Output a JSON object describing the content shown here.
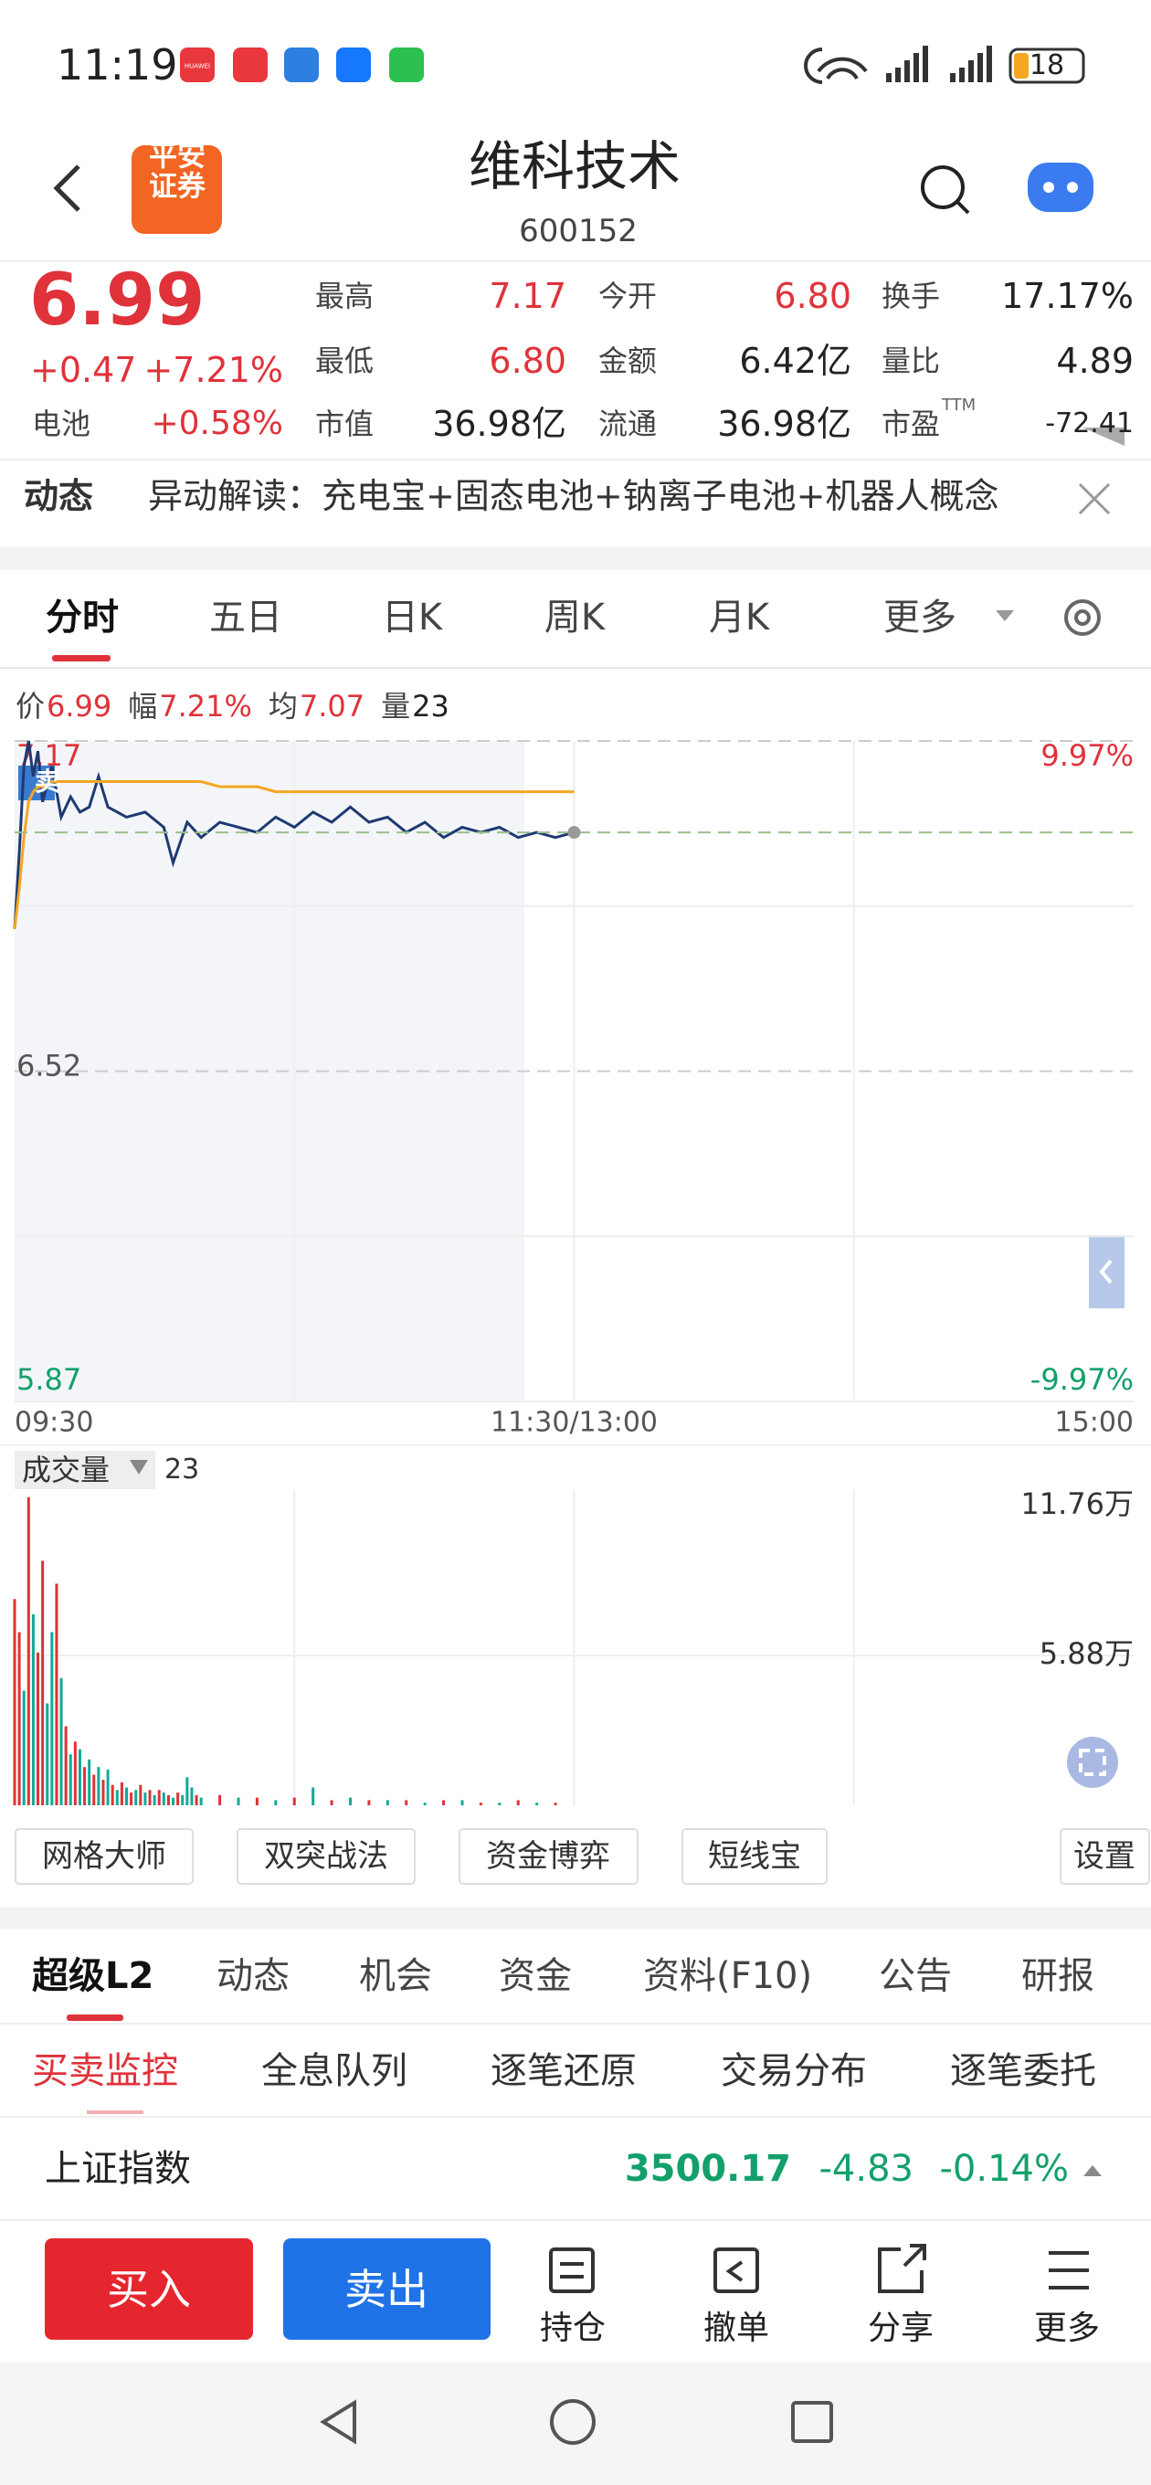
{
  "status": {
    "time": "11:19",
    "app_label": "HUAWEI",
    "battery": "18"
  },
  "header": {
    "logo": "平安证券",
    "title": "维科技术",
    "code": "600152"
  },
  "quote": {
    "price": "6.99",
    "change": "+0.47",
    "change_pct": "+7.21%",
    "sector": "电池",
    "sector_pct": "+0.58%",
    "fields": [
      {
        "label": "最高",
        "value": "7.17"
      },
      {
        "label": "今开",
        "value": "6.80"
      },
      {
        "label": "换手",
        "value": "17.17%"
      },
      {
        "label": "最低",
        "value": "6.80"
      },
      {
        "label": "金额",
        "value": "6.42亿"
      },
      {
        "label": "量比",
        "value": "4.89"
      },
      {
        "label": "市值",
        "value": "36.98亿"
      },
      {
        "label": "流通",
        "value": "36.98亿"
      },
      {
        "label": "市盈",
        "suffix": "TTM",
        "value": "-72.41"
      }
    ]
  },
  "news": {
    "tag": "动态",
    "text": "异动解读：充电宝+固态电池+钠离子电池+机器人概念"
  },
  "chart_tabs": [
    "分时",
    "五日",
    "日K",
    "周K",
    "月K",
    "更多"
  ],
  "info": [
    {
      "label": "价",
      "value": "6.99"
    },
    {
      "label": "幅",
      "value": "7.21%"
    },
    {
      "label": "均",
      "value": "7.07"
    },
    {
      "label": "量",
      "value": "23"
    }
  ],
  "badge": "卖",
  "chart_data": [
    {
      "type": "line",
      "x": [
        0,
        1,
        2,
        3,
        4,
        5,
        6,
        8,
        10,
        12,
        14,
        16,
        18,
        20,
        24,
        28,
        32,
        34,
        37,
        40,
        44,
        48,
        52,
        56,
        60,
        64,
        68,
        72,
        76,
        80,
        84,
        88,
        92,
        96,
        100,
        104,
        108,
        112,
        116,
        120
      ],
      "series": [
        {
          "name": "价",
          "color": "#1f3a72",
          "values": [
            6.8,
            6.95,
            7.12,
            7.17,
            7.1,
            7.15,
            7.05,
            7.12,
            7.02,
            7.06,
            7.03,
            7.04,
            7.1,
            7.04,
            7.02,
            7.03,
            7.0,
            6.93,
            7.01,
            6.98,
            7.01,
            7.0,
            6.99,
            7.02,
            7.0,
            7.03,
            7.01,
            7.04,
            7.01,
            7.02,
            6.99,
            7.01,
            6.98,
            7.0,
            6.99,
            7.0,
            6.98,
            6.99,
            6.98,
            6.99
          ]
        },
        {
          "name": "均",
          "color": "#f5a623",
          "values": [
            6.8,
            6.88,
            6.98,
            7.05,
            7.07,
            7.08,
            7.08,
            7.09,
            7.09,
            7.09,
            7.09,
            7.09,
            7.09,
            7.09,
            7.09,
            7.09,
            7.09,
            7.09,
            7.09,
            7.09,
            7.08,
            7.08,
            7.08,
            7.07,
            7.07,
            7.07,
            7.07,
            7.07,
            7.07,
            7.07,
            7.07,
            7.07,
            7.07,
            7.07,
            7.07,
            7.07,
            7.07,
            7.07,
            7.07,
            7.07
          ]
        }
      ],
      "xlim": [
        0,
        240
      ],
      "xticks": [
        {
          "value": 0,
          "label": "09:30"
        },
        {
          "value": 120,
          "label": "11:30/13:00"
        },
        {
          "value": 240,
          "label": "15:00"
        }
      ],
      "ylim": [
        5.87,
        7.17
      ],
      "yticks": [
        7.17,
        6.52,
        5.87
      ],
      "y2lim": [
        -9.97,
        9.97
      ],
      "y2ticks": [
        {
          "value": 9.97,
          "label": "9.97%"
        },
        {
          "value": -9.97,
          "label": "-9.97%"
        }
      ]
    },
    {
      "type": "bar",
      "title": "成交量",
      "value_label": "23",
      "x": [
        0,
        1,
        2,
        3,
        4,
        5,
        6,
        7,
        8,
        9,
        10,
        11,
        12,
        13,
        14,
        15,
        16,
        17,
        18,
        19,
        20,
        21,
        22,
        23,
        24,
        25,
        26,
        27,
        28,
        29,
        30,
        31,
        32,
        33,
        34,
        35,
        36,
        37,
        38,
        39,
        40,
        44,
        48,
        52,
        56,
        60,
        64,
        68,
        72,
        76,
        80,
        84,
        88,
        92,
        96,
        100,
        104,
        108,
        112,
        116
      ],
      "values": [
        8.1,
        6.8,
        4.5,
        12.1,
        7.5,
        6.0,
        9.6,
        4.0,
        6.8,
        8.7,
        5.0,
        3.1,
        2.0,
        2.5,
        2.2,
        1.5,
        1.8,
        1.2,
        1.5,
        1.0,
        1.4,
        0.8,
        0.6,
        0.9,
        0.7,
        0.5,
        0.6,
        0.8,
        0.5,
        0.6,
        0.4,
        0.6,
        0.5,
        0.4,
        0.3,
        0.5,
        0.4,
        1.1,
        0.7,
        0.4,
        0.3,
        0.4,
        0.3,
        0.3,
        0.2,
        0.3,
        0.7,
        0.2,
        0.3,
        0.2,
        0.2,
        0.2,
        0.1,
        0.2,
        0.2,
        0.1,
        0.1,
        0.2,
        0.1,
        0.1
      ],
      "colors": [
        "#d33",
        "#d33",
        "#1a9",
        "#d33",
        "#1a9",
        "#d33",
        "#d33",
        "#1a9",
        "#1a9",
        "#d33",
        "#1a9",
        "#d33",
        "#1a9",
        "#d33",
        "#1a9",
        "#d33",
        "#1a9",
        "#d33",
        "#1a9",
        "#d33",
        "#1a9",
        "#d33",
        "#1a9",
        "#d33",
        "#1a9",
        "#d33",
        "#1a9",
        "#d33",
        "#1a9",
        "#d33",
        "#1a9",
        "#d33",
        "#1a9",
        "#d33",
        "#1a9",
        "#d33",
        "#1a9",
        "#1a9",
        "#1a9",
        "#d33",
        "#1a9",
        "#d33",
        "#1a9",
        "#d33",
        "#1a9",
        "#d33",
        "#1a9",
        "#d33",
        "#1a9",
        "#d33",
        "#1a9",
        "#d33",
        "#1a9",
        "#d33",
        "#1a9",
        "#d33",
        "#1a9",
        "#d33",
        "#1a9",
        "#d33"
      ],
      "xlim": [
        0,
        240
      ],
      "ylim": [
        0,
        12.45
      ],
      "yticks": [
        {
          "value": 11.76,
          "label": "11.76万"
        },
        {
          "value": 5.88,
          "label": "5.88万"
        }
      ]
    }
  ],
  "tools": [
    "网格大师",
    "双突战法",
    "资金博弈",
    "短线宝",
    "设置"
  ],
  "tabs": [
    "超级L2",
    "动态",
    "机会",
    "资金",
    "资料(F10)",
    "公告",
    "研报"
  ],
  "subtabs": [
    "买卖监控",
    "全息队列",
    "逐笔还原",
    "交易分布",
    "逐笔委托"
  ],
  "index": {
    "name": "上证指数",
    "value": "3500.17",
    "change": "-4.83",
    "change_pct": "-0.14%"
  },
  "actions": {
    "buy": "买入",
    "sell": "卖出",
    "items": [
      "持仓",
      "撤单",
      "分享",
      "更多"
    ]
  }
}
